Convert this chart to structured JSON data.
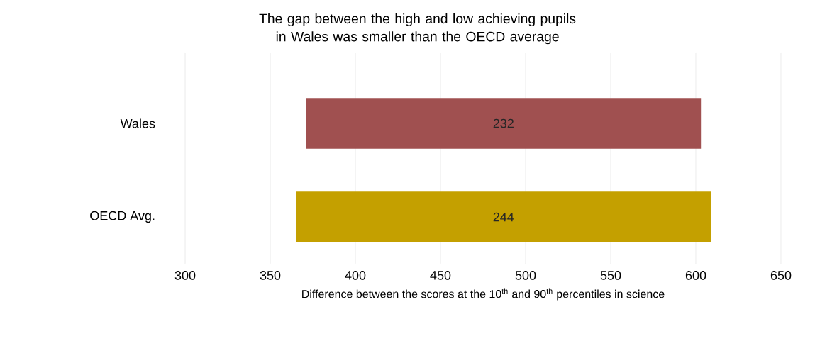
{
  "chart_data": {
    "type": "bar",
    "orientation": "horizontal",
    "title": "The gap between the high and low achieving pupils in Wales was smaller than the OECD average",
    "xlabel": "Difference between the scores at the 10$^{th}$ and 90$^{th}$ percentiles in science",
    "categories": [
      "Wales",
      "OECD Avg."
    ],
    "base": [
      371,
      365
    ],
    "values": [
      232,
      244
    ],
    "colors": [
      "#a05050",
      "#c4a000"
    ],
    "data_labels": true,
    "xlim": [
      300,
      650
    ],
    "xticks": [
      300,
      350,
      400,
      450,
      500,
      550,
      600,
      650
    ],
    "grid": "x"
  }
}
